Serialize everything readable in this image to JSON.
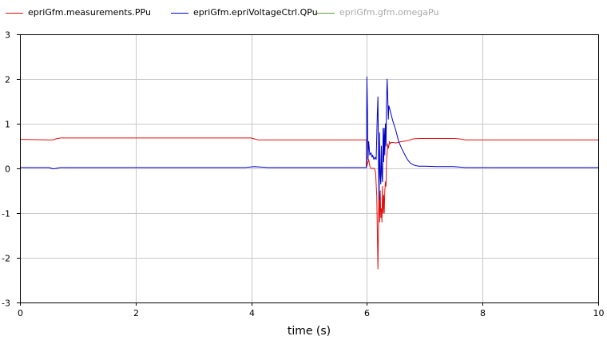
{
  "legend": [
    {
      "label": "epriGfm.measurements.PPu",
      "color": "#e01010",
      "dimmed": false
    },
    {
      "label": "epriGfm.epriVoltageCtrl.QPu",
      "color": "#0000c8",
      "dimmed": false
    },
    {
      "label": "epriGfm.gfm.omegaPu",
      "color": "#5aa02c",
      "dimmed": true
    }
  ],
  "chart_data": {
    "type": "line",
    "title": "",
    "xlabel": "time (s)",
    "ylabel": "",
    "xlim": [
      0,
      10
    ],
    "ylim": [
      -3,
      3
    ],
    "xticks": [
      0,
      2,
      4,
      6,
      8,
      10
    ],
    "yticks": [
      -3,
      -2,
      -1,
      0,
      1,
      2,
      3
    ],
    "grid": true,
    "legend_position": "top",
    "series": [
      {
        "name": "epriGfm.measurements.PPu",
        "color": "#e01010",
        "x": [
          0,
          0.5,
          0.58,
          0.62,
          0.7,
          1,
          2,
          3,
          4,
          4.05,
          4.12,
          4.2,
          5,
          5.9,
          5.99,
          6.0,
          6.01,
          6.03,
          6.05,
          6.07,
          6.1,
          6.13,
          6.15,
          6.17,
          6.19,
          6.2,
          6.21,
          6.22,
          6.23,
          6.24,
          6.25,
          6.26,
          6.27,
          6.28,
          6.29,
          6.3,
          6.31,
          6.32,
          6.33,
          6.34,
          6.35,
          6.36,
          6.37,
          6.38,
          6.39,
          6.4,
          6.42,
          6.45,
          6.5,
          6.6,
          6.7,
          6.8,
          6.9,
          7.0,
          7.5,
          7.6,
          7.7,
          8,
          9,
          10
        ],
        "y": [
          0.65,
          0.64,
          0.64,
          0.66,
          0.68,
          0.68,
          0.68,
          0.68,
          0.68,
          0.66,
          0.64,
          0.64,
          0.64,
          0.64,
          0.64,
          0.05,
          0.1,
          0.2,
          0.05,
          0.0,
          0.0,
          0.0,
          -0.1,
          -0.6,
          -2.25,
          -1.2,
          -0.3,
          -1.2,
          -0.5,
          -1.1,
          -0.9,
          -1.2,
          -0.4,
          -1.0,
          -0.6,
          -1.0,
          -0.5,
          -0.3,
          -0.4,
          0.2,
          0.35,
          0.55,
          0.45,
          0.5,
          0.6,
          0.55,
          0.58,
          0.58,
          0.57,
          0.6,
          0.62,
          0.66,
          0.67,
          0.67,
          0.67,
          0.66,
          0.64,
          0.64,
          0.64,
          0.64
        ]
      },
      {
        "name": "epriGfm.epriVoltageCtrl.QPu",
        "color": "#0000c8",
        "x": [
          0,
          0.5,
          0.58,
          0.62,
          0.7,
          1,
          2,
          3,
          3.9,
          4.05,
          4.15,
          4.3,
          5,
          5.99,
          6.0,
          6.01,
          6.02,
          6.03,
          6.05,
          6.07,
          6.09,
          6.1,
          6.12,
          6.14,
          6.16,
          6.18,
          6.19,
          6.2,
          6.21,
          6.22,
          6.23,
          6.24,
          6.25,
          6.26,
          6.27,
          6.28,
          6.29,
          6.3,
          6.31,
          6.32,
          6.33,
          6.34,
          6.35,
          6.36,
          6.37,
          6.38,
          6.4,
          6.45,
          6.5,
          6.55,
          6.6,
          6.65,
          6.7,
          6.75,
          6.8,
          6.85,
          6.9,
          7.0,
          7.2,
          7.5,
          7.7,
          8,
          9,
          10
        ],
        "y": [
          0.02,
          0.02,
          -0.01,
          0.0,
          0.02,
          0.02,
          0.02,
          0.02,
          0.02,
          0.04,
          0.03,
          0.02,
          0.02,
          0.02,
          2.05,
          1.3,
          0.2,
          0.6,
          0.3,
          0.35,
          0.25,
          0.3,
          0.2,
          0.25,
          0.2,
          1.2,
          1.6,
          0.1,
          -0.7,
          0.8,
          -0.2,
          -0.35,
          0.5,
          -0.15,
          -0.3,
          0.9,
          0.15,
          0.9,
          0.3,
          1.0,
          0.5,
          1.5,
          2.0,
          1.6,
          1.1,
          1.4,
          1.3,
          1.05,
          0.85,
          0.6,
          0.45,
          0.32,
          0.2,
          0.12,
          0.08,
          0.06,
          0.05,
          0.05,
          0.04,
          0.04,
          0.02,
          0.02,
          0.02,
          0.02
        ]
      },
      {
        "name": "epriGfm.gfm.omegaPu",
        "color": "#5aa02c",
        "x": [],
        "y": []
      }
    ]
  }
}
